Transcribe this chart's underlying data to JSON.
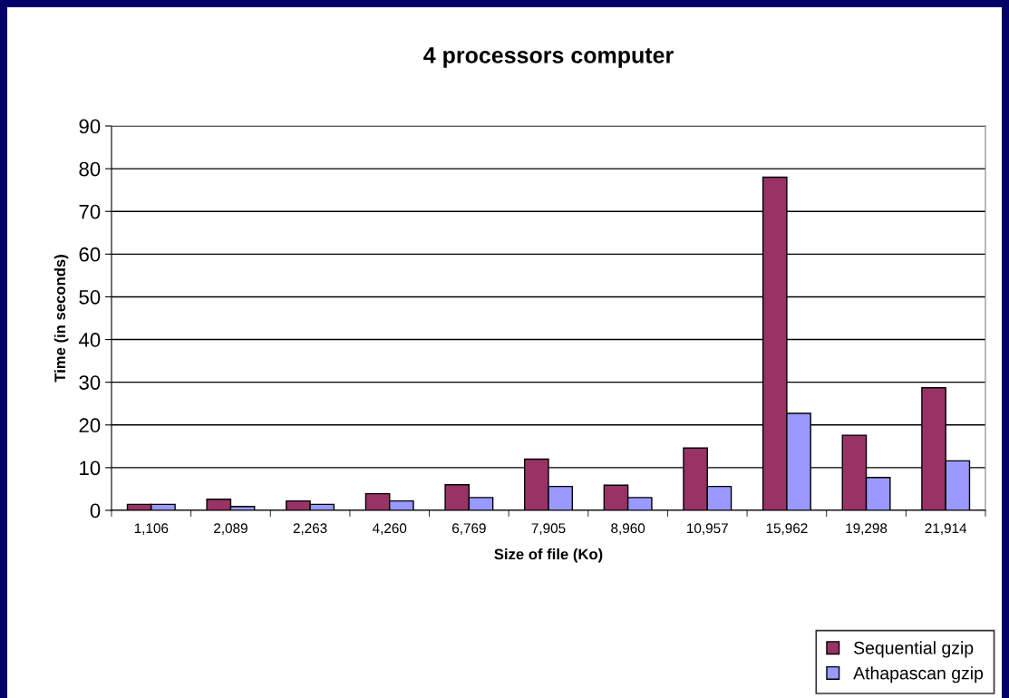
{
  "chart_data": {
    "type": "bar",
    "title": "4 processors computer",
    "xlabel": "Size of file (Ko)",
    "ylabel": "Time (in seconds)",
    "categories": [
      "1,106",
      "2,089",
      "2,263",
      "4,260",
      "6,769",
      "7,905",
      "8,960",
      "10,957",
      "15,962",
      "19,298",
      "21,914"
    ],
    "series": [
      {
        "name": "Sequential gzip",
        "color": "#993366",
        "values": [
          1.4,
          2.6,
          2.2,
          3.9,
          6.0,
          12.0,
          5.9,
          14.6,
          78.0,
          17.6,
          28.7
        ]
      },
      {
        "name": "Athapascan gzip",
        "color": "#9999ff",
        "values": [
          1.4,
          0.9,
          1.4,
          2.2,
          3.0,
          5.6,
          3.0,
          5.6,
          22.7,
          7.7,
          11.6
        ]
      }
    ],
    "ylim": [
      0,
      90
    ],
    "yticks": [
      0,
      10,
      20,
      30,
      40,
      50,
      60,
      70,
      80,
      90
    ],
    "grid": "y",
    "legend": "bottom right"
  }
}
